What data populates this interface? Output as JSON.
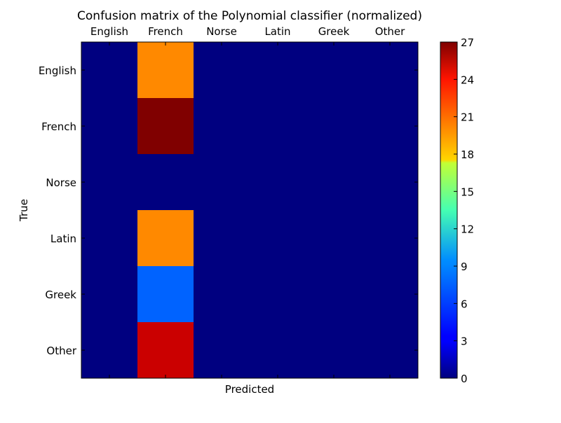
{
  "chart_data": {
    "type": "heatmap",
    "title": "Confusion matrix of the Polynomial classifier (normalized)",
    "xlabel": "Predicted",
    "ylabel": "True",
    "x_categories": [
      "English",
      "French",
      "Norse",
      "Latin",
      "Greek",
      "Other"
    ],
    "y_categories": [
      "English",
      "French",
      "Norse",
      "Latin",
      "Greek",
      "Other"
    ],
    "values": [
      [
        0,
        20,
        0,
        0,
        0,
        0
      ],
      [
        0,
        27,
        0,
        0,
        0,
        0
      ],
      [
        0,
        0,
        0,
        0,
        0,
        0
      ],
      [
        0,
        20,
        0,
        0,
        0,
        0
      ],
      [
        0,
        6,
        0,
        0,
        0,
        0
      ],
      [
        0,
        25,
        0,
        0,
        0,
        0
      ]
    ],
    "colorbar": {
      "range": [
        0,
        27
      ],
      "ticks": [
        0,
        3,
        6,
        9,
        12,
        15,
        18,
        21,
        24,
        27
      ],
      "colormap": "jet"
    },
    "x_axis_position": "top",
    "grid": false
  }
}
